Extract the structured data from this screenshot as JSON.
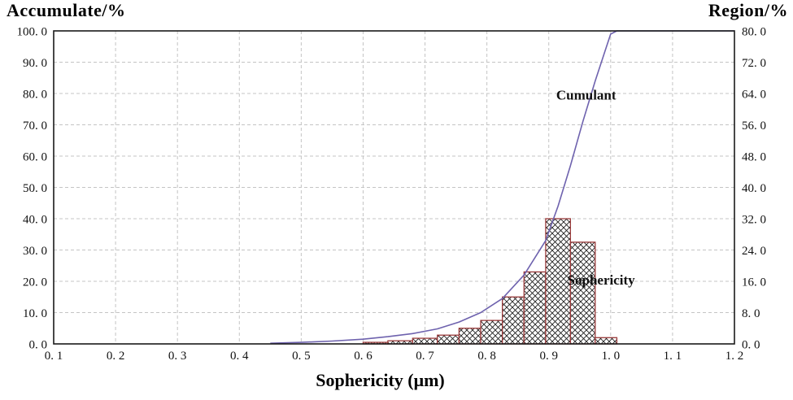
{
  "titles": {
    "left_axis": "Accumulate/%",
    "right_axis": "Region/%",
    "x_axis": "Sophericity (μm)"
  },
  "colors": {
    "cumulant_line": "#6e62ae",
    "bar_outline": "#9a3b3b",
    "hatch": "#1f1f1f",
    "grid": "#c4c4c4",
    "frame": "#1a1a1a",
    "text": "#111111"
  },
  "chart_data": {
    "type": "combo",
    "subtype": "cumulative line + crosshatched histogram",
    "grid": "dashed, both directions",
    "x_axis": {
      "label": "Sophericity (μm)",
      "min": 0.1,
      "max": 1.2,
      "tick_step": 0.1,
      "tick_labels": [
        "0. 1",
        "0. 2",
        "0. 3",
        "0. 4",
        "0. 5",
        "0. 6",
        "0. 7",
        "0. 8",
        "0. 9",
        "1. 0",
        "1. 1",
        "1. 2"
      ]
    },
    "left_y_axis": {
      "label": "Accumulate/%",
      "min": 0,
      "max": 100,
      "tick_step": 10,
      "tick_labels": [
        "100. 0",
        "90. 0",
        "80. 0",
        "70. 0",
        "60. 0",
        "50. 0",
        "40. 0",
        "30. 0",
        "20. 0",
        "10. 0",
        "0. 0"
      ]
    },
    "right_y_axis": {
      "label": "Region/%",
      "min": 0,
      "max": 80,
      "tick_step": 8,
      "tick_labels": [
        "80. 0",
        "72. 0",
        "64. 0",
        "56. 0",
        "48. 0",
        "40. 0",
        "32. 0",
        "24. 0",
        "16. 0",
        "8. 0",
        "0. 0"
      ]
    },
    "series": [
      {
        "name": "Cumulant",
        "type": "line",
        "axis": "left",
        "points": [
          [
            0.45,
            0.2
          ],
          [
            0.5,
            0.5
          ],
          [
            0.55,
            0.9
          ],
          [
            0.6,
            1.5
          ],
          [
            0.64,
            2.3
          ],
          [
            0.68,
            3.3
          ],
          [
            0.72,
            4.8
          ],
          [
            0.755,
            7.0
          ],
          [
            0.79,
            10.0
          ],
          [
            0.825,
            14.5
          ],
          [
            0.86,
            22.0
          ],
          [
            0.895,
            33.0
          ],
          [
            0.915,
            44.0
          ],
          [
            0.935,
            57.0
          ],
          [
            0.955,
            71.0
          ],
          [
            0.975,
            84.0
          ],
          [
            0.99,
            93.0
          ],
          [
            1.0,
            99.0
          ],
          [
            1.01,
            100.0
          ],
          [
            1.2,
            100.0
          ]
        ]
      },
      {
        "name": "Sophericity",
        "type": "histogram",
        "axis": "left",
        "bars": [
          {
            "x0": 0.6,
            "x1": 0.64,
            "accumulate_pct": 0.5,
            "region_pct": 0.4
          },
          {
            "x0": 0.64,
            "x1": 0.68,
            "accumulate_pct": 1.0,
            "region_pct": 0.8
          },
          {
            "x0": 0.68,
            "x1": 0.72,
            "accumulate_pct": 1.8,
            "region_pct": 1.44
          },
          {
            "x0": 0.72,
            "x1": 0.755,
            "accumulate_pct": 2.8,
            "region_pct": 2.24
          },
          {
            "x0": 0.755,
            "x1": 0.79,
            "accumulate_pct": 5.0,
            "region_pct": 4.0
          },
          {
            "x0": 0.79,
            "x1": 0.825,
            "accumulate_pct": 7.5,
            "region_pct": 6.0
          },
          {
            "x0": 0.825,
            "x1": 0.86,
            "accumulate_pct": 15.0,
            "region_pct": 12.0
          },
          {
            "x0": 0.86,
            "x1": 0.895,
            "accumulate_pct": 23.0,
            "region_pct": 18.4
          },
          {
            "x0": 0.895,
            "x1": 0.935,
            "accumulate_pct": 40.0,
            "region_pct": 32.0
          },
          {
            "x0": 0.935,
            "x1": 0.975,
            "accumulate_pct": 32.5,
            "region_pct": 26.0
          },
          {
            "x0": 0.975,
            "x1": 1.01,
            "accumulate_pct": 2.0,
            "region_pct": 1.6
          }
        ]
      }
    ],
    "annotations": [
      {
        "text": "Cumulant",
        "x": 0.912,
        "y_accumulate_pct": 78.0
      },
      {
        "text": "Sophericity",
        "x": 0.93,
        "y_accumulate_pct": 19.0
      }
    ]
  }
}
